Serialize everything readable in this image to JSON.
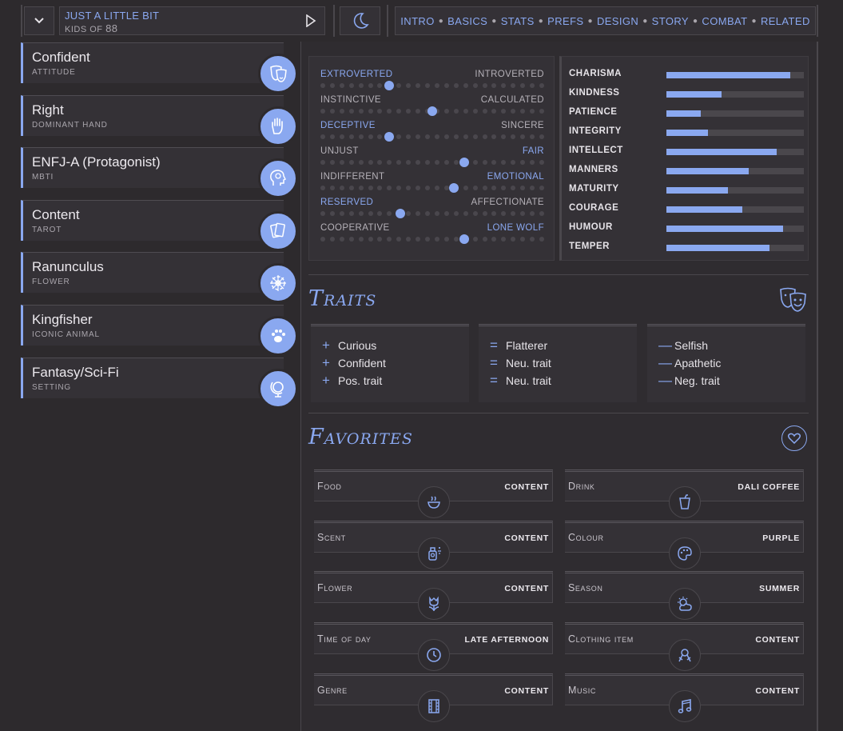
{
  "header": {
    "song_title": "JUST A LITTLE BIT",
    "song_sub_prefix": "KIDS OF",
    "song_sub_num": "88",
    "nav": [
      "INTRO",
      "BASICS",
      "STATS",
      "PREFS",
      "DESIGN",
      "STORY",
      "COMBAT",
      "RELATED"
    ]
  },
  "cards": [
    {
      "value": "Confident",
      "key": "ATTITUDE",
      "icon": "theater-masks-icon"
    },
    {
      "value": "Right",
      "key": "DOMINANT HAND",
      "icon": "hand-icon"
    },
    {
      "value": "ENFJ-A (Protagonist)",
      "key": "MBTI",
      "icon": "head-brain-icon"
    },
    {
      "value": "Content",
      "key": "TAROT",
      "icon": "cards-icon"
    },
    {
      "value": "Ranunculus",
      "key": "FLOWER",
      "icon": "flower-icon"
    },
    {
      "value": "Kingfisher",
      "key": "ICONIC ANIMAL",
      "icon": "paw-icon"
    },
    {
      "value": "Fantasy/Sci-Fi",
      "key": "SETTING",
      "icon": "globe-icon"
    }
  ],
  "sliders": [
    {
      "left": "EXTROVERTED",
      "right": "INTROVERTED",
      "highlight": "left",
      "value": 0.3
    },
    {
      "left": "INSTINCTIVE",
      "right": "CALCULATED",
      "highlight": "none",
      "value": 0.5
    },
    {
      "left": "DECEPTIVE",
      "right": "SINCERE",
      "highlight": "left",
      "value": 0.3
    },
    {
      "left": "UNJUST",
      "right": "FAIR",
      "highlight": "right",
      "value": 0.65
    },
    {
      "left": "INDIFFERENT",
      "right": "EMOTIONAL",
      "highlight": "right",
      "value": 0.6
    },
    {
      "left": "RESERVED",
      "right": "AFFECTIONATE",
      "highlight": "left",
      "value": 0.35
    },
    {
      "left": "COOPERATIVE",
      "right": "LONE WOLF",
      "highlight": "right",
      "value": 0.65
    }
  ],
  "stats": [
    {
      "name": "CHARISMA",
      "value": 0.9
    },
    {
      "name": "KINDNESS",
      "value": 0.4
    },
    {
      "name": "PATIENCE",
      "value": 0.25
    },
    {
      "name": "INTEGRITY",
      "value": 0.3
    },
    {
      "name": "INTELLECT",
      "value": 0.8
    },
    {
      "name": "MANNERS",
      "value": 0.6
    },
    {
      "name": "MATURITY",
      "value": 0.45
    },
    {
      "name": "COURAGE",
      "value": 0.55
    },
    {
      "name": "HUMOUR",
      "value": 0.85
    },
    {
      "name": "TEMPER",
      "value": 0.75
    }
  ],
  "traits": {
    "title": "Traits",
    "positive": [
      "Curious",
      "Confident",
      "Pos. trait"
    ],
    "neutral": [
      "Flatterer",
      "Neu. trait",
      "Neu. trait"
    ],
    "negative": [
      "Selfish",
      "Apathetic",
      "Neg. trait"
    ],
    "pos_symbol": "+",
    "neu_symbol": "=",
    "neg_symbol": "—"
  },
  "favorites": {
    "title": "Favorites",
    "items": [
      {
        "label": "Food",
        "value": "CONTENT",
        "icon": "bowl-icon"
      },
      {
        "label": "Drink",
        "value": "DALI COFFEE",
        "icon": "cup-icon"
      },
      {
        "label": "Scent",
        "value": "CONTENT",
        "icon": "perfume-icon"
      },
      {
        "label": "Colour",
        "value": "PURPLE",
        "icon": "palette-icon"
      },
      {
        "label": "Flower",
        "value": "CONTENT",
        "icon": "tulip-icon"
      },
      {
        "label": "Season",
        "value": "SUMMER",
        "icon": "sun-cloud-icon"
      },
      {
        "label": "Time of day",
        "value": "LATE AFTERNOON",
        "icon": "clock-icon"
      },
      {
        "label": "Clothing item",
        "value": "CONTENT",
        "icon": "ribbon-icon"
      },
      {
        "label": "Genre",
        "value": "CONTENT",
        "icon": "film-icon"
      },
      {
        "label": "Music",
        "value": "CONTENT",
        "icon": "music-note-icon"
      }
    ]
  },
  "colors": {
    "accent": "#8aa8f0",
    "background": "#2d2a2d",
    "panel": "#343136"
  }
}
